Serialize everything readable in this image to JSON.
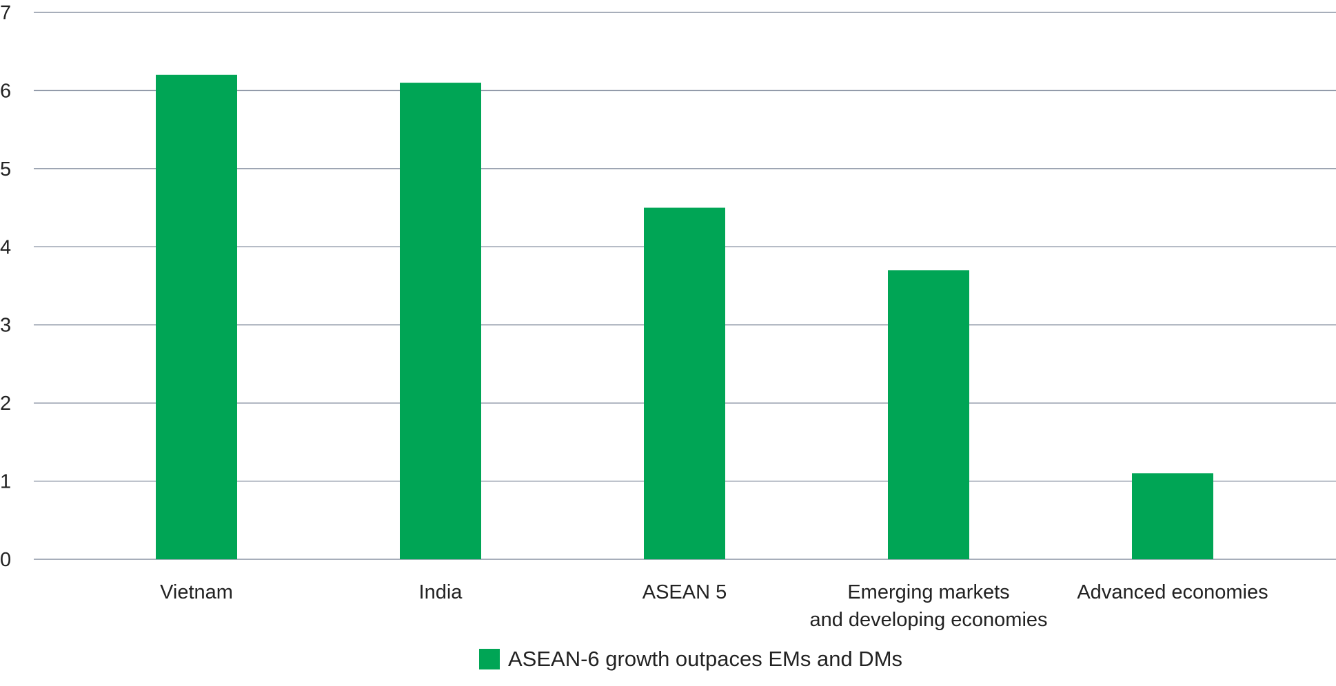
{
  "chart_data": {
    "type": "bar",
    "categories": [
      [
        "Vietnam"
      ],
      [
        "India"
      ],
      [
        "ASEAN 5"
      ],
      [
        "Emerging markets",
        "and developing economies"
      ],
      [
        "Advanced economies"
      ]
    ],
    "series": [
      {
        "name": "ASEAN-6 growth outpaces EMs and DMs",
        "values": [
          6.2,
          6.1,
          4.5,
          3.7,
          1.1
        ]
      }
    ],
    "ylim": [
      0,
      7
    ],
    "yticks": [
      "0",
      "1",
      "2",
      "3",
      "4",
      "5",
      "6",
      "7"
    ],
    "grid": true,
    "legend_position": "bottom-center",
    "colors": {
      "bar": "#00A555",
      "grid": "#8A93A3",
      "text": "#222222"
    }
  }
}
